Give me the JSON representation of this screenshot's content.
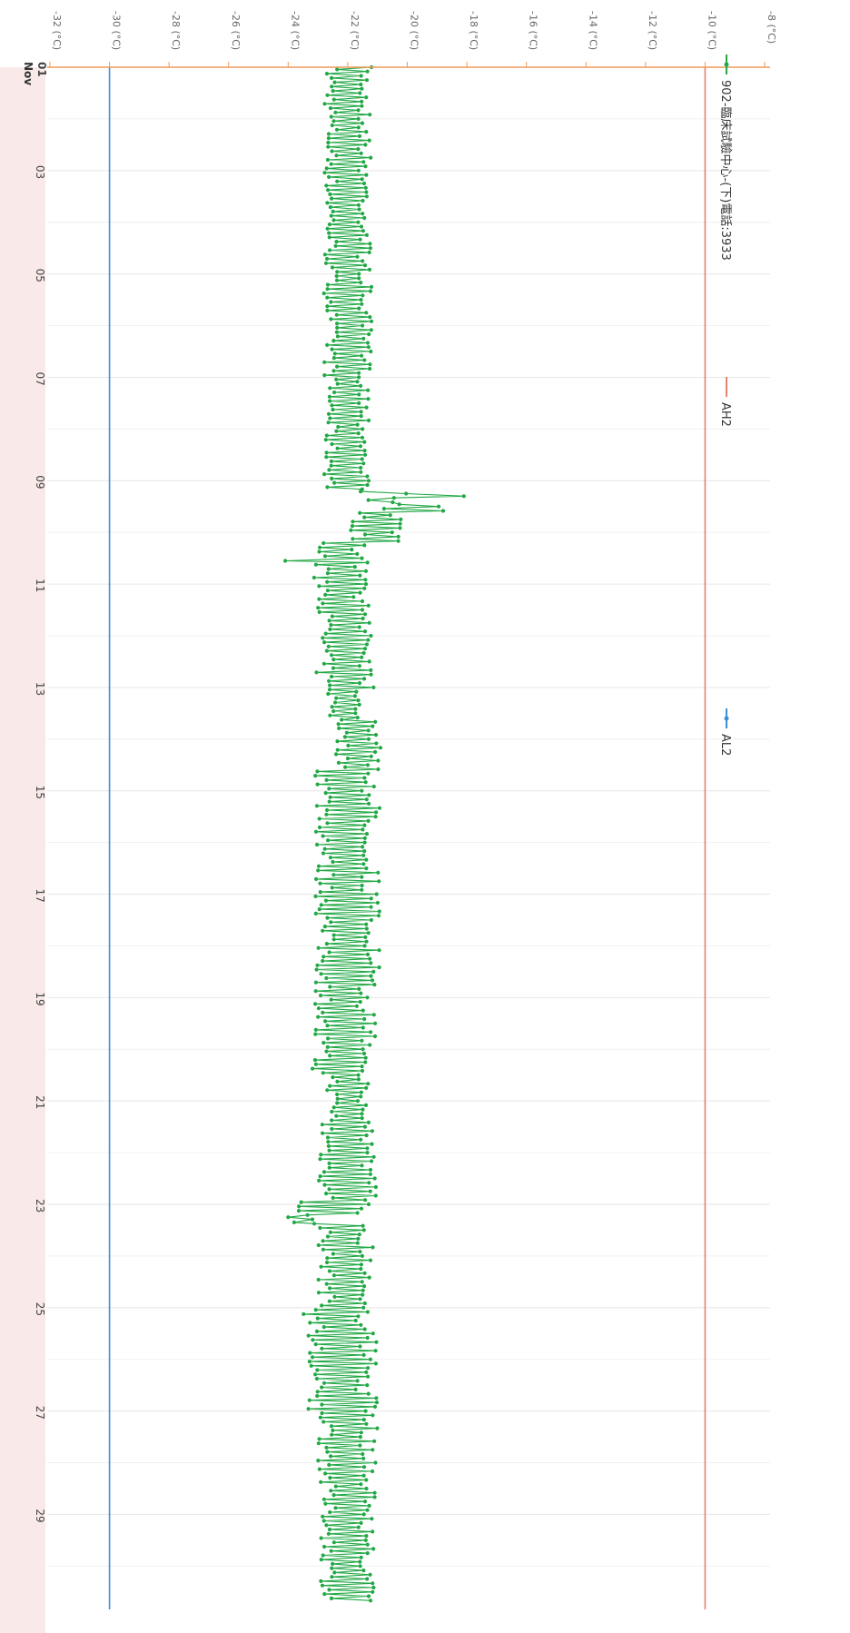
{
  "chart_data": {
    "type": "line",
    "orientation": "rotated-90-clockwise",
    "y_axis": {
      "ticks": [
        -32,
        -30,
        -28,
        -26,
        -24,
        -22,
        -20,
        -18,
        -16,
        -14,
        -12,
        -10,
        -8
      ],
      "tick_labels": [
        "-32 (°C)",
        "-30 (°C)",
        "-28 (°C)",
        "-26 (°C)",
        "-24 (°C)",
        "-22 (°C)",
        "-20 (°C)",
        "-18 (°C)",
        "-16 (°C)",
        "-14 (°C)",
        "-12 (°C)",
        "-10 (°C)",
        "-8 (°C)"
      ],
      "range": [
        -32,
        -8
      ]
    },
    "x_axis": {
      "ticks": [
        1,
        3,
        5,
        7,
        9,
        11,
        13,
        15,
        17,
        19,
        21,
        23,
        25,
        27,
        29
      ],
      "tick_labels": [
        "01",
        "03",
        "05",
        "07",
        "09",
        "11",
        "13",
        "15",
        "17",
        "19",
        "21",
        "23",
        "25",
        "27",
        "29"
      ],
      "month_label": "Nov",
      "range": [
        1,
        30.75
      ]
    },
    "grid": true,
    "legend_position": "top",
    "series": [
      {
        "name": "902-臨床試驗中心-(下)電話:3933",
        "color": "#22a845",
        "kind": "oscillating-samples",
        "samples_per_day": 24,
        "x_start": 1,
        "x_end": 30.7,
        "segments": [
          {
            "from": 1,
            "to": 9.2,
            "low": -22.8,
            "high": -21.2
          },
          {
            "from": 9.2,
            "to": 9.45,
            "low": -21.8,
            "high": -20.0
          },
          {
            "from": 9.45,
            "to": 9.6,
            "low": -20.8,
            "high": -18.2
          },
          {
            "from": 9.6,
            "to": 10.2,
            "low": -21.9,
            "high": -20.2
          },
          {
            "from": 10.2,
            "to": 10.9,
            "low": -23.2,
            "high": -21.3
          },
          {
            "from": 10.9,
            "to": 11.6,
            "low": -23.0,
            "high": -21.3
          },
          {
            "from": 11.6,
            "to": 13.0,
            "low": -23.1,
            "high": -21.0
          },
          {
            "from": 13.0,
            "to": 13.6,
            "low": -22.7,
            "high": -21.4
          },
          {
            "from": 13.6,
            "to": 14.6,
            "low": -22.4,
            "high": -20.9
          },
          {
            "from": 14.6,
            "to": 18.5,
            "low": -23.1,
            "high": -20.9
          },
          {
            "from": 18.5,
            "to": 19.4,
            "low": -23.1,
            "high": -21.1
          },
          {
            "from": 19.4,
            "to": 20.5,
            "low": -23.3,
            "high": -20.9
          },
          {
            "from": 20.5,
            "to": 21.4,
            "low": -22.7,
            "high": -21.3
          },
          {
            "from": 21.4,
            "to": 22.9,
            "low": -23.0,
            "high": -21.0
          },
          {
            "from": 22.9,
            "to": 23.4,
            "low": -23.8,
            "high": -21.2
          },
          {
            "from": 23.4,
            "to": 25.0,
            "low": -23.0,
            "high": -21.1
          },
          {
            "from": 25.0,
            "to": 27.0,
            "low": -23.5,
            "high": -21.0
          },
          {
            "from": 27.0,
            "to": 28.9,
            "low": -23.0,
            "high": -21.0
          },
          {
            "from": 28.9,
            "to": 30.7,
            "low": -22.9,
            "high": -21.1
          }
        ],
        "outliers": [
          {
            "x": 9.3,
            "y": -18.1
          },
          {
            "x": 10.55,
            "y": -24.1
          },
          {
            "x": 23.25,
            "y": -24.0
          },
          {
            "x": 23.35,
            "y": -23.8
          }
        ]
      },
      {
        "name": "AH2",
        "color": "#e8816f",
        "values_constant": -10.0
      },
      {
        "name": "AL2",
        "color": "#3a8fd6",
        "values_constant": -30.0
      }
    ]
  }
}
